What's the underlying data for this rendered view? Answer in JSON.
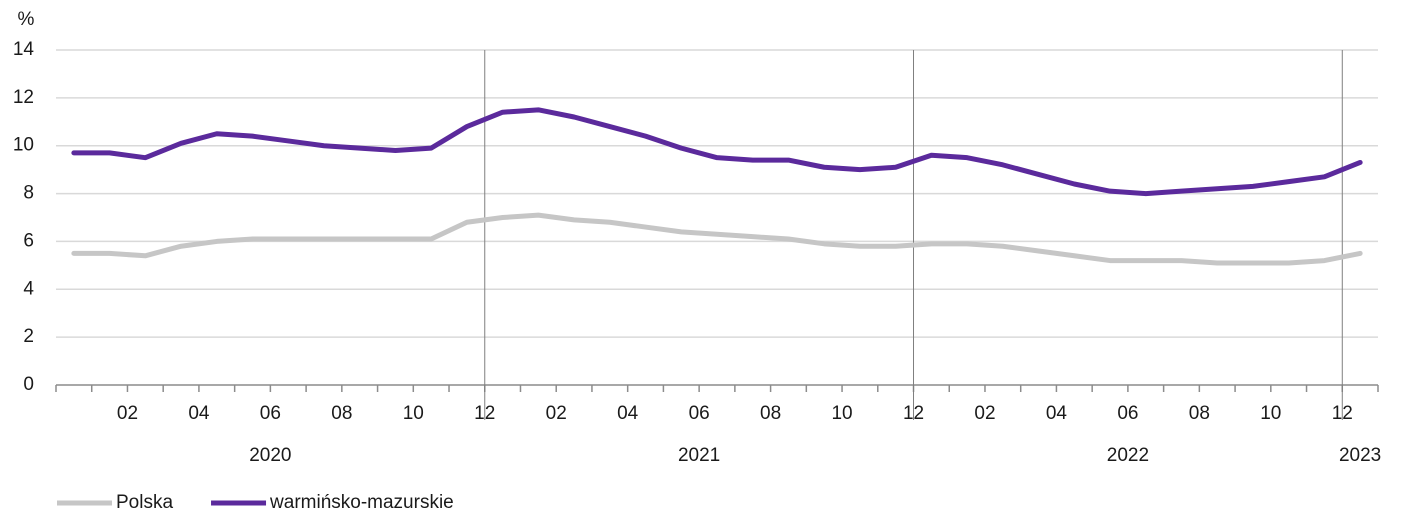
{
  "chart_data": {
    "type": "line",
    "y_label": "%",
    "categories": [
      null,
      "02",
      null,
      "04",
      null,
      "06",
      null,
      "08",
      null,
      "10",
      null,
      "12",
      null,
      "02",
      null,
      "04",
      null,
      "06",
      null,
      "08",
      null,
      "10",
      null,
      "12",
      null,
      "02",
      null,
      "04",
      null,
      "06",
      null,
      "08",
      null,
      "10",
      null,
      "12",
      null
    ],
    "x_groups": [
      "2020",
      "2021",
      "2022",
      "2023"
    ],
    "ylim": [
      0,
      14
    ],
    "yticks": [
      0,
      2,
      4,
      6,
      8,
      10,
      12,
      14
    ],
    "grid": true,
    "legend": "bottom-left",
    "series": [
      {
        "name": "Polska",
        "color": "#c6c6c6",
        "values": [
          5.5,
          5.5,
          5.4,
          5.8,
          6.0,
          6.1,
          6.1,
          6.1,
          6.1,
          6.1,
          6.1,
          6.8,
          7.0,
          7.1,
          6.9,
          6.8,
          6.6,
          6.4,
          6.3,
          6.2,
          6.1,
          5.9,
          5.8,
          5.8,
          5.9,
          5.9,
          5.8,
          5.6,
          5.4,
          5.2,
          5.2,
          5.2,
          5.1,
          5.1,
          5.1,
          5.2,
          5.5
        ]
      },
      {
        "name": "warmińsko-mazurskie",
        "color": "#5b2a9c",
        "values": [
          9.7,
          9.7,
          9.5,
          10.1,
          10.5,
          10.4,
          10.2,
          10.0,
          9.9,
          9.8,
          9.9,
          10.8,
          11.4,
          11.5,
          11.2,
          10.8,
          10.4,
          9.9,
          9.5,
          9.4,
          9.4,
          9.1,
          9.0,
          9.1,
          9.6,
          9.5,
          9.2,
          8.8,
          8.4,
          8.1,
          8.0,
          8.1,
          8.2,
          8.3,
          8.5,
          8.7,
          9.3
        ]
      }
    ]
  }
}
